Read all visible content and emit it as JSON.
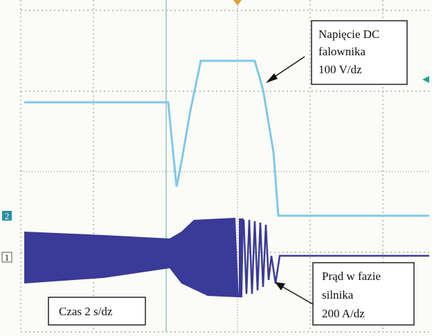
{
  "annotations": {
    "voltage": [
      "Napięcie DC",
      "falownika",
      "100 V/dz"
    ],
    "current": [
      "Prąd w fazie",
      "silnika",
      "200 A/dz"
    ],
    "time": "Czas 2 s/dz"
  },
  "channel_markers": [
    "2",
    "1"
  ]
}
